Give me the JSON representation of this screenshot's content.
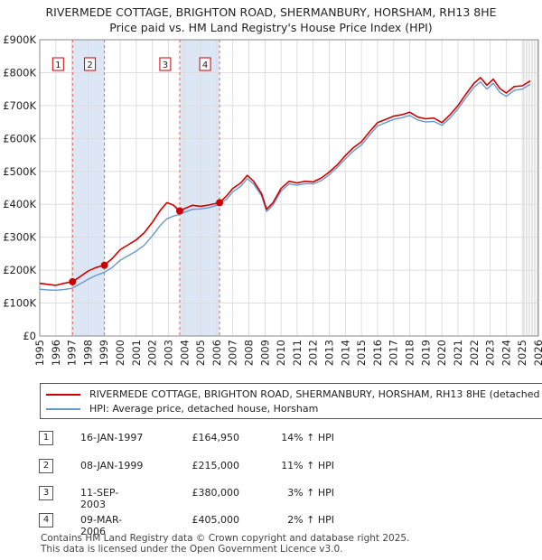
{
  "title_line1": "RIVERMEDE COTTAGE, BRIGHTON ROAD, SHERMANBURY, HORSHAM, RH13 8HE",
  "title_line2": "Price paid vs. HM Land Registry's House Price Index (HPI)",
  "colors": {
    "property": "#cc0000",
    "hpi": "#6699cc",
    "shade": "#dde6f5",
    "grid": "#dddddd",
    "vline": "#dd6666"
  },
  "chart_data": {
    "type": "line",
    "title": "Price paid vs. HM Land Registry's House Price Index (HPI)",
    "xlabel": "",
    "ylabel": "",
    "xlim": [
      1995.0,
      2026.0
    ],
    "ylim": [
      0,
      900000
    ],
    "yticks": [
      0,
      100000,
      200000,
      300000,
      400000,
      500000,
      600000,
      700000,
      800000,
      900000
    ],
    "ytick_labels": [
      "£0",
      "£100K",
      "£200K",
      "£300K",
      "£400K",
      "£500K",
      "£600K",
      "£700K",
      "£800K",
      "£900K"
    ],
    "xticks": [
      1995,
      1996,
      1997,
      1998,
      1999,
      2000,
      2001,
      2002,
      2003,
      2004,
      2005,
      2006,
      2007,
      2008,
      2009,
      2010,
      2011,
      2012,
      2013,
      2014,
      2015,
      2016,
      2017,
      2018,
      2019,
      2020,
      2021,
      2022,
      2023,
      2024,
      2025,
      2026
    ],
    "grid": true,
    "forecast_from": 2025.1,
    "series": [
      {
        "name": "RIVERMEDE COTTAGE, BRIGHTON ROAD, SHERMANBURY, HORSHAM, RH13 8HE (detached house)",
        "color": "#cc0000",
        "x": [
          1995.0,
          1995.5,
          1996.0,
          1996.5,
          1997.04,
          1997.5,
          1998.0,
          1998.5,
          1999.02,
          1999.5,
          2000.0,
          2000.5,
          2001.0,
          2001.5,
          2002.0,
          2002.5,
          2002.9,
          2003.3,
          2003.7,
          2004.0,
          2004.5,
          2005.0,
          2005.5,
          2006.18,
          2006.6,
          2007.0,
          2007.5,
          2007.9,
          2008.3,
          2008.8,
          2009.1,
          2009.5,
          2010.0,
          2010.5,
          2011.0,
          2011.5,
          2012.0,
          2012.5,
          2013.0,
          2013.5,
          2014.0,
          2014.5,
          2015.0,
          2015.5,
          2016.0,
          2016.5,
          2017.0,
          2017.5,
          2018.0,
          2018.5,
          2019.0,
          2019.5,
          2020.0,
          2020.5,
          2021.0,
          2021.5,
          2022.0,
          2022.4,
          2022.8,
          2023.2,
          2023.6,
          2024.0,
          2024.5,
          2025.0,
          2025.5
        ],
        "y": [
          160000,
          157000,
          154000,
          160000,
          164950,
          180000,
          197000,
          208000,
          215000,
          235000,
          262000,
          277000,
          292000,
          314000,
          345000,
          382000,
          405000,
          398000,
          380000,
          387000,
          397000,
          394000,
          398000,
          405000,
          425000,
          448000,
          465000,
          488000,
          470000,
          432000,
          385000,
          405000,
          448000,
          470000,
          465000,
          470000,
          468000,
          480000,
          498000,
          520000,
          548000,
          572000,
          590000,
          620000,
          648000,
          658000,
          668000,
          672000,
          680000,
          665000,
          660000,
          662000,
          648000,
          672000,
          700000,
          735000,
          768000,
          785000,
          762000,
          780000,
          752000,
          738000,
          758000,
          760000,
          775000
        ]
      },
      {
        "name": "HPI: Average price, detached house, Horsham",
        "color": "#6699cc",
        "x": [
          1995.0,
          1995.5,
          1996.0,
          1996.5,
          1997.0,
          1997.5,
          1998.0,
          1998.5,
          1999.0,
          1999.5,
          2000.0,
          2000.5,
          2001.0,
          2001.5,
          2002.0,
          2002.5,
          2002.9,
          2003.3,
          2003.7,
          2004.0,
          2004.5,
          2005.0,
          2005.5,
          2006.0,
          2006.6,
          2007.0,
          2007.5,
          2007.9,
          2008.3,
          2008.8,
          2009.1,
          2009.5,
          2010.0,
          2010.5,
          2011.0,
          2011.5,
          2012.0,
          2012.5,
          2013.0,
          2013.5,
          2014.0,
          2014.5,
          2015.0,
          2015.5,
          2016.0,
          2016.5,
          2017.0,
          2017.5,
          2018.0,
          2018.5,
          2019.0,
          2019.5,
          2020.0,
          2020.5,
          2021.0,
          2021.5,
          2022.0,
          2022.4,
          2022.8,
          2023.2,
          2023.6,
          2024.0,
          2024.5,
          2025.0,
          2025.5
        ],
        "y": [
          142000,
          140000,
          139000,
          141000,
          145000,
          158000,
          172000,
          184000,
          193000,
          208000,
          230000,
          244000,
          258000,
          276000,
          304000,
          336000,
          356000,
          364000,
          370000,
          376000,
          385000,
          386000,
          390000,
          397000,
          415000,
          438000,
          455000,
          478000,
          462000,
          425000,
          378000,
          398000,
          440000,
          462000,
          458000,
          463000,
          462000,
          472000,
          490000,
          512000,
          538000,
          562000,
          580000,
          610000,
          638000,
          648000,
          658000,
          663000,
          670000,
          656000,
          650000,
          652000,
          640000,
          662000,
          690000,
          724000,
          756000,
          772000,
          750000,
          768000,
          740000,
          728000,
          746000,
          750000,
          765000
        ]
      }
    ],
    "transactions": [
      {
        "num": "1",
        "date": "16-JAN-1997",
        "price": "£164,950",
        "hpi": "14% ↑ HPI",
        "x": 1997.04,
        "value": 164950
      },
      {
        "num": "2",
        "date": "08-JAN-1999",
        "price": "£215,000",
        "hpi": "11% ↑ HPI",
        "x": 1999.02,
        "value": 215000
      },
      {
        "num": "3",
        "date": "11-SEP-2003",
        "price": "£380,000",
        "hpi": "3% ↑ HPI",
        "x": 2003.7,
        "value": 380000
      },
      {
        "num": "4",
        "date": "09-MAR-2006",
        "price": "£405,000",
        "hpi": "2% ↑ HPI",
        "x": 2006.18,
        "value": 405000
      }
    ],
    "shaded_periods": [
      [
        1997.04,
        1999.02
      ],
      [
        2003.7,
        2006.18
      ]
    ]
  },
  "footer_line1": "Contains HM Land Registry data © Crown copyright and database right 2025.",
  "footer_line2": "This data is licensed under the Open Government Licence v3.0."
}
